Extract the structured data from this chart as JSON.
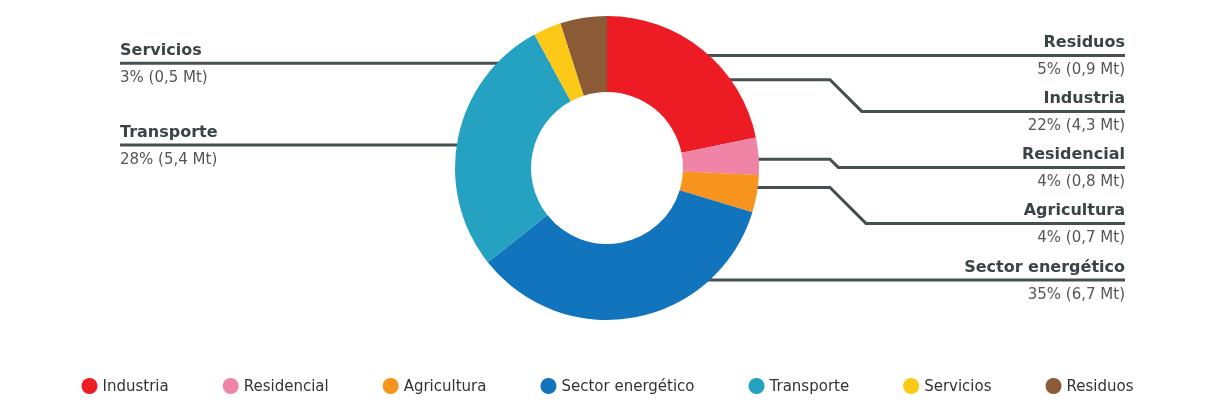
{
  "chart_data": {
    "type": "donut",
    "categories": [
      "Industria",
      "Residencial",
      "Agricultura",
      "Sector energético",
      "Transporte",
      "Servicios",
      "Residuos"
    ],
    "values": [
      22,
      4,
      4,
      35,
      28,
      3,
      5
    ],
    "value_labels": [
      "22% (4,3 Mt)",
      "4% (0,8 Mt)",
      "4% (0,7 Mt)",
      "35% (6,7 Mt)",
      "28% (5,4 Mt)",
      "3% (0,5 Mt)",
      "5% (0,9 Mt)"
    ],
    "colors": [
      "#ed1c24",
      "#f084a6",
      "#f7941d",
      "#1174bc",
      "#25a2c1",
      "#fcc918",
      "#8b5a37"
    ],
    "legend": "bottom"
  }
}
